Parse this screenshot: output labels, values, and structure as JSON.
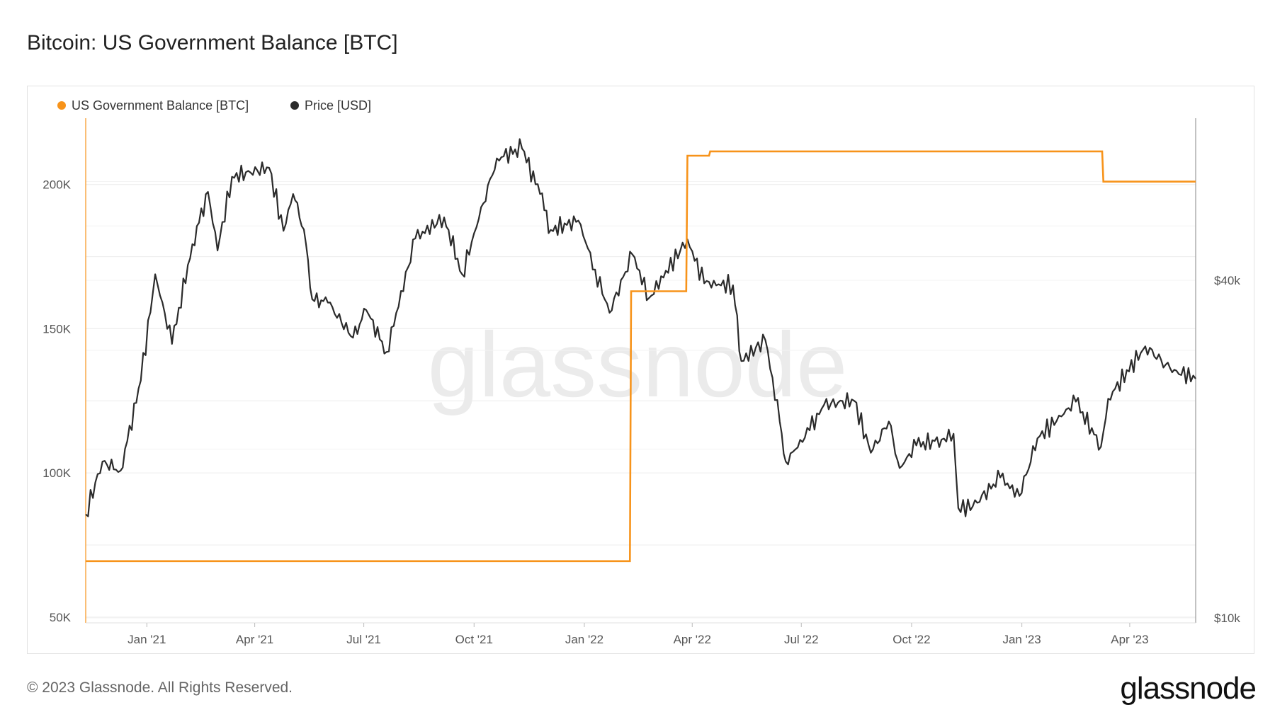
{
  "header": {
    "title": "Bitcoin: US Government Balance [BTC]"
  },
  "footer": {
    "copyright": "© 2023 Glassnode. All Rights Reserved.",
    "brand": "glassnode"
  },
  "watermark": "glassnode",
  "colors": {
    "balance": "#f7931a",
    "price": "#2b2b2b",
    "grid": "#ececec"
  },
  "chart_data": {
    "type": "line",
    "grid": true,
    "legend_position": "top-left",
    "x_tick_labels": [
      "Jan '21",
      "Apr '21",
      "Jul '21",
      "Oct '21",
      "Jan '22",
      "Apr '22",
      "Jul '22",
      "Oct '22",
      "Jan '23",
      "Apr '23"
    ],
    "x_ticks": [
      "2021-01-01",
      "2021-04-01",
      "2021-07-01",
      "2021-10-01",
      "2022-01-01",
      "2022-04-01",
      "2022-07-01",
      "2022-10-01",
      "2023-01-01",
      "2023-04-01"
    ],
    "xlim": [
      "2020-11-11",
      "2023-05-26"
    ],
    "left_axis": {
      "ticks": [
        50000,
        100000,
        150000,
        200000
      ],
      "tick_labels": [
        "50K",
        "100K",
        "150K",
        "200K"
      ],
      "ylim": [
        48000,
        223000
      ]
    },
    "right_axis": {
      "scale": "log",
      "ticks": [
        10000,
        40000
      ],
      "tick_labels": [
        "$10k",
        "$40k"
      ]
    },
    "series": [
      {
        "name": "US Government Balance [BTC]",
        "axis": "left",
        "x": [
          "2020-11-11",
          "2020-11-12",
          "2022-02-08",
          "2022-02-09",
          "2022-03-27",
          "2022-03-28",
          "2022-04-15",
          "2022-04-16",
          "2023-03-09",
          "2023-03-10",
          "2023-05-26"
        ],
        "values": [
          69400,
          69400,
          69400,
          163000,
          163000,
          210000,
          210000,
          211500,
          211500,
          201000,
          201000
        ]
      },
      {
        "name": "Price [USD]",
        "axis": "right",
        "x": [
          "2020-11-11",
          "2020-11-25",
          "2020-12-10",
          "2020-12-27",
          "2021-01-08",
          "2021-01-22",
          "2021-02-08",
          "2021-02-21",
          "2021-03-01",
          "2021-03-13",
          "2021-04-13",
          "2021-04-25",
          "2021-05-03",
          "2021-05-12",
          "2021-05-19",
          "2021-06-01",
          "2021-06-22",
          "2021-07-03",
          "2021-07-20",
          "2021-08-13",
          "2021-09-06",
          "2021-09-21",
          "2021-10-05",
          "2021-10-20",
          "2021-11-10",
          "2021-11-25",
          "2021-12-04",
          "2021-12-27",
          "2022-01-10",
          "2022-01-22",
          "2022-02-10",
          "2022-02-24",
          "2022-03-28",
          "2022-04-11",
          "2022-05-05",
          "2022-05-12",
          "2022-06-01",
          "2022-06-13",
          "2022-06-18",
          "2022-07-08",
          "2022-07-20",
          "2022-08-14",
          "2022-08-28",
          "2022-09-12",
          "2022-09-21",
          "2022-10-05",
          "2022-10-26",
          "2022-11-05",
          "2022-11-09",
          "2022-11-21",
          "2022-12-14",
          "2022-12-30",
          "2023-01-14",
          "2023-02-15",
          "2023-03-08",
          "2023-03-14",
          "2023-04-14",
          "2023-05-01",
          "2023-05-10",
          "2023-05-26"
        ],
        "values": [
          15300,
          19000,
          18300,
          26500,
          41000,
          30800,
          46400,
          57500,
          45200,
          61200,
          63500,
          49000,
          57000,
          49300,
          37000,
          36500,
          31600,
          35400,
          29800,
          47500,
          51800,
          41000,
          51500,
          66000,
          68700,
          57000,
          49200,
          51100,
          41800,
          35000,
          44500,
          37200,
          47300,
          39500,
          39200,
          28700,
          31300,
          22400,
          19000,
          21600,
          24000,
          24400,
          19700,
          22400,
          18500,
          20300,
          20800,
          21300,
          15700,
          15800,
          17800,
          16500,
          20900,
          24300,
          20200,
          24600,
          30500,
          28300,
          27600,
          26700
        ]
      }
    ]
  }
}
